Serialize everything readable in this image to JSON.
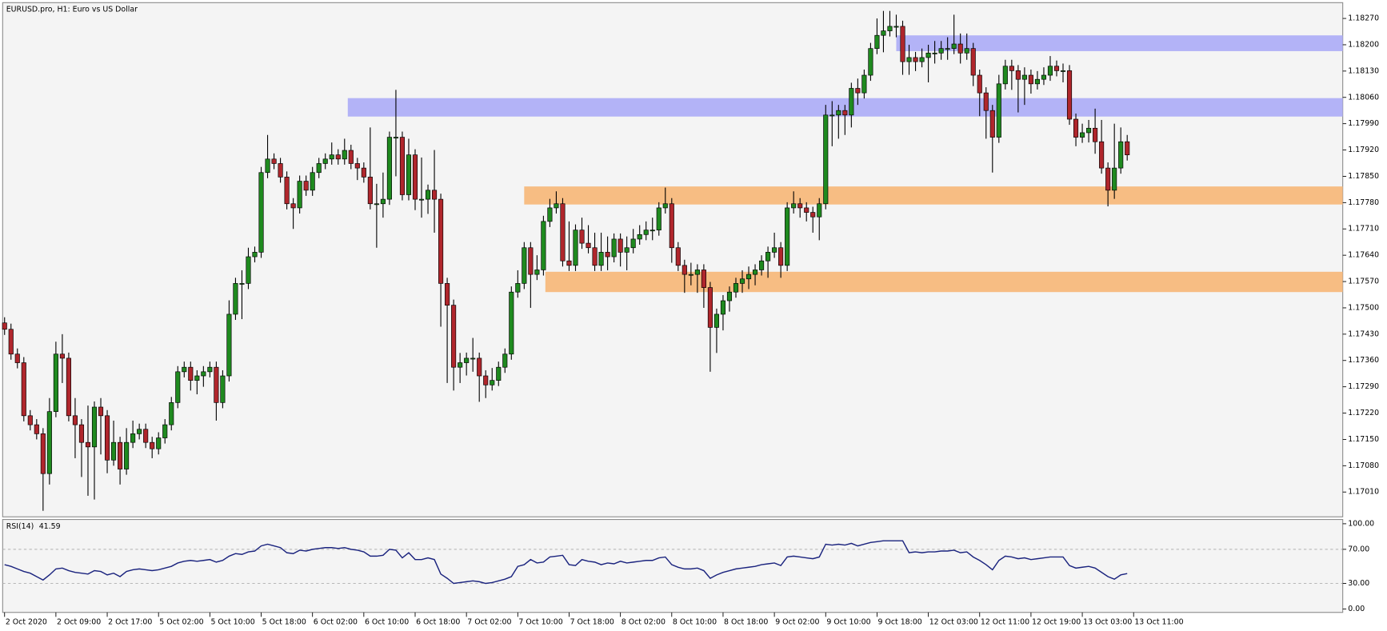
{
  "chart_data": [
    {
      "type": "candlestick",
      "title": "EURUSD.pro, H1:  Euro vs US Dollar",
      "up_color": "#1f8a1f",
      "down_color": "#b0262c",
      "wick_color": "#000000",
      "xlim": [
        -0.3,
        208.6
      ],
      "ylim": [
        1.16944,
        1.18312
      ],
      "yticks": [
        {
          "value": 1.1827,
          "label": "1.18270"
        },
        {
          "value": 1.182,
          "label": "1.18200"
        },
        {
          "value": 1.1813,
          "label": "1.18130"
        },
        {
          "value": 1.1806,
          "label": "1.18060"
        },
        {
          "value": 1.1799,
          "label": "1.17990"
        },
        {
          "value": 1.1792,
          "label": "1.17920"
        },
        {
          "value": 1.1785,
          "label": "1.17850"
        },
        {
          "value": 1.1778,
          "label": "1.17780"
        },
        {
          "value": 1.1771,
          "label": "1.17710"
        },
        {
          "value": 1.1764,
          "label": "1.17640"
        },
        {
          "value": 1.1757,
          "label": "1.17570"
        },
        {
          "value": 1.175,
          "label": "1.17500"
        },
        {
          "value": 1.1743,
          "label": "1.17430"
        },
        {
          "value": 1.1736,
          "label": "1.17360"
        },
        {
          "value": 1.1729,
          "label": "1.17290"
        },
        {
          "value": 1.1722,
          "label": "1.17220"
        },
        {
          "value": 1.1715,
          "label": "1.17150"
        },
        {
          "value": 1.1708,
          "label": "1.17080"
        },
        {
          "value": 1.1701,
          "label": "1.17010"
        }
      ],
      "zones": [
        {
          "x0": 139,
          "y": [
            1.18183,
            1.18225
          ],
          "color": "#b3b3f7"
        },
        {
          "x0": 53.5,
          "y": [
            1.18009,
            1.18058
          ],
          "color": "#b3b3f7"
        },
        {
          "x0": 81,
          "y": [
            1.17775,
            1.17823
          ],
          "color": "#f7bd83"
        },
        {
          "x0": 84.3,
          "y": [
            1.17542,
            1.17596
          ],
          "color": "#f7bd83"
        }
      ],
      "open": [
        1.1746,
        1.17443,
        1.17377,
        1.17354,
        1.17213,
        1.17189,
        1.17165,
        1.17059,
        1.17224,
        1.17377,
        1.17366,
        1.17213,
        1.17189,
        1.17142,
        1.1713,
        1.17236,
        1.17213,
        1.17095,
        1.17142,
        1.17071,
        1.17142,
        1.17165,
        1.17177,
        1.17142,
        1.17125,
        1.17154,
        1.17189,
        1.17248,
        1.1733,
        1.17342,
        1.17307,
        1.17319,
        1.1733,
        1.17342,
        1.17248,
        1.17319,
        1.17483,
        1.17565,
        1.17565,
        1.17636,
        1.17648,
        1.1786,
        1.17896,
        1.17884,
        1.17848,
        1.17777,
        1.17766,
        1.17837,
        1.17813,
        1.1786,
        1.17884,
        1.17896,
        1.17907,
        1.17896,
        1.17919,
        1.17884,
        1.17872,
        1.17848,
        1.17777,
        1.17777,
        1.17789,
        1.17954,
        1.17954,
        1.17801,
        1.17907,
        1.17789,
        1.17789,
        1.17813,
        1.17789,
        1.17565,
        1.17507,
        1.17342,
        1.17354,
        1.17366,
        1.17366,
        1.17319,
        1.17295,
        1.17307,
        1.17342,
        1.17377,
        1.17542,
        1.17565,
        1.1766,
        1.17589,
        1.17601,
        1.1773,
        1.17766,
        1.17777,
        1.17625,
        1.17613,
        1.17707,
        1.17672,
        1.1766,
        1.17613,
        1.17648,
        1.17636,
        1.17683,
        1.17648,
        1.1766,
        1.17683,
        1.17695,
        1.17707,
        1.17707,
        1.17766,
        1.17777,
        1.1766,
        1.17613,
        1.17589,
        1.17589,
        1.17601,
        1.17554,
        1.17448,
        1.17483,
        1.17519,
        1.17542,
        1.17565,
        1.17577,
        1.17589,
        1.17601,
        1.17625,
        1.17648,
        1.1766,
        1.17613,
        1.17766,
        1.17777,
        1.17766,
        1.17754,
        1.17742,
        1.17777,
        1.18013,
        1.18013,
        1.18025,
        1.18013,
        1.18084,
        1.18072,
        1.18119,
        1.1819,
        1.18225,
        1.18237,
        1.18249,
        1.18249,
        1.18155,
        1.18166,
        1.18155,
        1.18166,
        1.18178,
        1.18178,
        1.1819,
        1.1819,
        1.18202,
        1.18178,
        1.1819,
        1.18119,
        1.18072,
        1.18025,
        1.17954,
        1.18096,
        1.18143,
        1.18131,
        1.18108,
        1.18119,
        1.18096,
        1.18108,
        1.18119,
        1.18143,
        1.18131,
        1.18131,
        1.18002,
        1.17954,
        1.17966,
        1.17978,
        1.17942,
        1.17872,
        1.17813,
        1.17872,
        1.17942
      ],
      "high": [
        1.17475,
        1.17458,
        1.17392,
        1.17369,
        1.17228,
        1.17204,
        1.1718,
        1.1726,
        1.1741,
        1.1743,
        1.17381,
        1.1726,
        1.17204,
        1.1724,
        1.17251,
        1.1726,
        1.17228,
        1.172,
        1.17157,
        1.1718,
        1.172,
        1.17192,
        1.17192,
        1.17157,
        1.17169,
        1.17204,
        1.17263,
        1.17345,
        1.17357,
        1.17357,
        1.17334,
        1.17345,
        1.17357,
        1.17357,
        1.17334,
        1.1752,
        1.1758,
        1.176,
        1.1766,
        1.17663,
        1.17875,
        1.1796,
        1.17911,
        1.17899,
        1.17863,
        1.17792,
        1.17852,
        1.17852,
        1.17875,
        1.17899,
        1.17911,
        1.1794,
        1.17922,
        1.1795,
        1.17934,
        1.17899,
        1.17887,
        1.1798,
        1.1783,
        1.1786,
        1.17969,
        1.1808,
        1.17969,
        1.1795,
        1.17922,
        1.179,
        1.17828,
        1.1792,
        1.17804,
        1.1758,
        1.17522,
        1.1738,
        1.17381,
        1.1742,
        1.17381,
        1.17334,
        1.1734,
        1.17357,
        1.17392,
        1.17557,
        1.176,
        1.17675,
        1.17675,
        1.1764,
        1.17745,
        1.1779,
        1.1781,
        1.17792,
        1.1773,
        1.17722,
        1.1774,
        1.1772,
        1.177,
        1.177,
        1.1769,
        1.17698,
        1.17698,
        1.1769,
        1.1771,
        1.1772,
        1.1773,
        1.1774,
        1.17781,
        1.1782,
        1.17792,
        1.17675,
        1.17628,
        1.1762,
        1.17616,
        1.17616,
        1.17569,
        1.17498,
        1.17534,
        1.17557,
        1.1758,
        1.176,
        1.1761,
        1.17616,
        1.1764,
        1.17663,
        1.177,
        1.17675,
        1.17781,
        1.1781,
        1.17792,
        1.17781,
        1.17769,
        1.17792,
        1.1804,
        1.1805,
        1.1804,
        1.1804,
        1.18099,
        1.1811,
        1.18134,
        1.18205,
        1.1827,
        1.1829,
        1.1829,
        1.1828,
        1.18264,
        1.182,
        1.18181,
        1.1819,
        1.182,
        1.1821,
        1.1821,
        1.1822,
        1.1828,
        1.1823,
        1.1823,
        1.18205,
        1.18134,
        1.18087,
        1.1804,
        1.1812,
        1.1816,
        1.1816,
        1.18146,
        1.1814,
        1.18134,
        1.1813,
        1.1814,
        1.1817,
        1.18158,
        1.1815,
        1.18146,
        1.18017,
        1.1799,
        1.18,
        1.1803,
        1.18,
        1.17887,
        1.1799,
        1.1798,
        1.1796
      ],
      "low": [
        1.17428,
        1.17362,
        1.17339,
        1.17198,
        1.17174,
        1.1715,
        1.1696,
        1.1703,
        1.17209,
        1.173,
        1.17198,
        1.171,
        1.1705,
        1.17,
        1.1699,
        1.1711,
        1.1706,
        1.1708,
        1.1703,
        1.17056,
        1.17127,
        1.1715,
        1.17127,
        1.171,
        1.1711,
        1.17139,
        1.17174,
        1.17233,
        1.17315,
        1.1728,
        1.1727,
        1.1729,
        1.17315,
        1.172,
        1.17233,
        1.17304,
        1.17468,
        1.1747,
        1.1755,
        1.17621,
        1.17633,
        1.17845,
        1.17869,
        1.17833,
        1.17762,
        1.1771,
        1.17751,
        1.17798,
        1.17798,
        1.17845,
        1.17869,
        1.17881,
        1.17881,
        1.17881,
        1.17869,
        1.1784,
        1.17833,
        1.17762,
        1.1766,
        1.1774,
        1.17774,
        1.1785,
        1.17786,
        1.17786,
        1.1776,
        1.1774,
        1.1775,
        1.177,
        1.1745,
        1.173,
        1.1728,
        1.173,
        1.1732,
        1.1733,
        1.1725,
        1.1726,
        1.1728,
        1.17292,
        1.17327,
        1.17362,
        1.17527,
        1.1755,
        1.175,
        1.17574,
        1.17586,
        1.17715,
        1.17751,
        1.1761,
        1.17598,
        1.17598,
        1.17657,
        1.17645,
        1.17598,
        1.17598,
        1.176,
        1.17621,
        1.1761,
        1.176,
        1.17645,
        1.17668,
        1.1768,
        1.1768,
        1.17692,
        1.17751,
        1.1762,
        1.17598,
        1.1754,
        1.1756,
        1.1754,
        1.175,
        1.1733,
        1.1738,
        1.1744,
        1.1749,
        1.17527,
        1.1754,
        1.1755,
        1.1756,
        1.17586,
        1.1758,
        1.17633,
        1.1758,
        1.17598,
        1.17751,
        1.1774,
        1.1773,
        1.177,
        1.1768,
        1.17762,
        1.1793,
        1.1795,
        1.1796,
        1.1798,
        1.1804,
        1.18057,
        1.18104,
        1.18175,
        1.1818,
        1.18222,
        1.1822,
        1.1812,
        1.1812,
        1.1813,
        1.1814,
        1.181,
        1.1815,
        1.1816,
        1.1816,
        1.18175,
        1.1815,
        1.1816,
        1.1809,
        1.1801,
        1.1795,
        1.1786,
        1.17939,
        1.18081,
        1.1808,
        1.1802,
        1.1804,
        1.1807,
        1.18081,
        1.18093,
        1.18104,
        1.18116,
        1.181,
        1.17987,
        1.1793,
        1.17939,
        1.1794,
        1.1791,
        1.17857,
        1.1777,
        1.1779,
        1.17857,
        1.17892
      ],
      "close": [
        1.17443,
        1.17377,
        1.17354,
        1.17213,
        1.17189,
        1.17165,
        1.17059,
        1.17224,
        1.17377,
        1.17366,
        1.17213,
        1.17189,
        1.17142,
        1.1713,
        1.17236,
        1.17213,
        1.17095,
        1.17142,
        1.17071,
        1.17142,
        1.17165,
        1.17177,
        1.17142,
        1.17125,
        1.17154,
        1.17189,
        1.17248,
        1.1733,
        1.17342,
        1.17307,
        1.17319,
        1.1733,
        1.17342,
        1.17248,
        1.17319,
        1.17483,
        1.17565,
        1.17565,
        1.17636,
        1.17648,
        1.1786,
        1.17896,
        1.17884,
        1.17848,
        1.17777,
        1.17766,
        1.17837,
        1.17813,
        1.1786,
        1.17884,
        1.17896,
        1.17907,
        1.17896,
        1.17919,
        1.17884,
        1.17872,
        1.17848,
        1.17777,
        1.17777,
        1.17789,
        1.17954,
        1.17954,
        1.17801,
        1.17907,
        1.17789,
        1.17789,
        1.17813,
        1.17789,
        1.17565,
        1.17507,
        1.17342,
        1.17354,
        1.17366,
        1.17366,
        1.17319,
        1.17295,
        1.17307,
        1.17342,
        1.17377,
        1.17542,
        1.17565,
        1.1766,
        1.17589,
        1.17601,
        1.1773,
        1.17766,
        1.17777,
        1.17625,
        1.17613,
        1.17707,
        1.17672,
        1.1766,
        1.17613,
        1.17648,
        1.17636,
        1.17683,
        1.17648,
        1.1766,
        1.17683,
        1.17695,
        1.17707,
        1.17707,
        1.17766,
        1.17777,
        1.1766,
        1.17613,
        1.17589,
        1.17589,
        1.17601,
        1.17554,
        1.17448,
        1.17483,
        1.17519,
        1.17542,
        1.17565,
        1.17577,
        1.17589,
        1.17601,
        1.17625,
        1.17648,
        1.1766,
        1.17613,
        1.17766,
        1.17777,
        1.17766,
        1.17754,
        1.17742,
        1.17777,
        1.18013,
        1.18013,
        1.18025,
        1.18013,
        1.18084,
        1.18072,
        1.18119,
        1.1819,
        1.18225,
        1.18237,
        1.18249,
        1.18249,
        1.18155,
        1.18166,
        1.18155,
        1.18166,
        1.18178,
        1.18178,
        1.1819,
        1.1819,
        1.18202,
        1.18178,
        1.1819,
        1.18119,
        1.18072,
        1.18025,
        1.17954,
        1.18096,
        1.18143,
        1.18131,
        1.18108,
        1.18119,
        1.18096,
        1.18108,
        1.18119,
        1.18143,
        1.18131,
        1.18131,
        1.18002,
        1.17954,
        1.17966,
        1.17978,
        1.17942,
        1.17872,
        1.17813,
        1.17872,
        1.17942,
        1.17907
      ]
    },
    {
      "type": "line",
      "title": "RSI(14)",
      "color": "#1a237e",
      "xlim": [
        -0.3,
        208.6
      ],
      "ylim": [
        -4,
        105
      ],
      "yticks": [
        {
          "value": 100,
          "label": "100.00"
        },
        {
          "value": 70,
          "label": "70.00"
        },
        {
          "value": 30,
          "label": "30.00"
        },
        {
          "value": 0,
          "label": "0.00"
        }
      ],
      "levels": [
        70,
        30
      ],
      "xticks": [
        {
          "value": 0,
          "label": "2 Oct 2020"
        },
        {
          "value": 8,
          "label": "2 Oct 09:00"
        },
        {
          "value": 16,
          "label": "2 Oct 17:00"
        },
        {
          "value": 24,
          "label": "5 Oct 02:00"
        },
        {
          "value": 32,
          "label": "5 Oct 10:00"
        },
        {
          "value": 40,
          "label": "5 Oct 18:00"
        },
        {
          "value": 48,
          "label": "6 Oct 02:00"
        },
        {
          "value": 56,
          "label": "6 Oct 10:00"
        },
        {
          "value": 64,
          "label": "6 Oct 18:00"
        },
        {
          "value": 72,
          "label": "7 Oct 02:00"
        },
        {
          "value": 80,
          "label": "7 Oct 10:00"
        },
        {
          "value": 88,
          "label": "7 Oct 18:00"
        },
        {
          "value": 96,
          "label": "8 Oct 02:00"
        },
        {
          "value": 104,
          "label": "8 Oct 10:00"
        },
        {
          "value": 112,
          "label": "8 Oct 18:00"
        },
        {
          "value": 120,
          "label": "9 Oct 02:00"
        },
        {
          "value": 128,
          "label": "9 Oct 10:00"
        },
        {
          "value": 136,
          "label": "9 Oct 18:00"
        },
        {
          "value": 144,
          "label": "12 Oct 03:00"
        },
        {
          "value": 152,
          "label": "12 Oct 11:00"
        },
        {
          "value": 160,
          "label": "12 Oct 19:00"
        },
        {
          "value": 168,
          "label": "13 Oct 03:00"
        },
        {
          "value": 176,
          "label": "13 Oct 11:00"
        }
      ],
      "values": [
        52,
        50,
        47,
        44,
        42,
        38,
        34,
        40,
        47,
        48,
        45,
        43,
        42,
        41,
        45,
        44,
        40,
        42,
        38,
        44,
        46,
        47,
        46,
        45,
        46,
        48,
        50,
        54,
        56,
        57,
        56,
        57,
        58,
        55,
        57,
        62,
        65,
        64,
        67,
        68,
        74,
        76,
        74,
        72,
        66,
        65,
        69,
        68,
        70,
        71,
        72,
        72,
        71,
        72,
        70,
        69,
        67,
        62,
        62,
        63,
        70,
        69,
        60,
        66,
        58,
        58,
        60,
        58,
        41,
        36,
        30,
        31,
        32,
        33,
        32,
        30,
        31,
        33,
        35,
        38,
        50,
        52,
        58,
        54,
        55,
        61,
        62,
        63,
        52,
        51,
        58,
        56,
        55,
        52,
        54,
        53,
        56,
        54,
        55,
        56,
        57,
        57,
        60,
        61,
        52,
        49,
        47,
        47,
        48,
        45,
        36,
        40,
        43,
        45,
        47,
        48,
        49,
        50,
        52,
        53,
        54,
        51,
        61,
        62,
        61,
        60,
        59,
        61,
        76,
        75,
        76,
        75,
        77,
        74,
        76,
        78,
        79,
        80,
        80,
        80,
        80,
        66,
        67,
        66,
        67,
        67,
        68,
        68,
        69,
        66,
        67,
        61,
        57,
        52,
        46,
        57,
        62,
        61,
        59,
        60,
        58,
        59,
        60,
        61,
        61,
        61,
        51,
        48,
        49,
        50,
        48,
        43,
        38,
        35,
        40,
        41.59
      ]
    }
  ]
}
